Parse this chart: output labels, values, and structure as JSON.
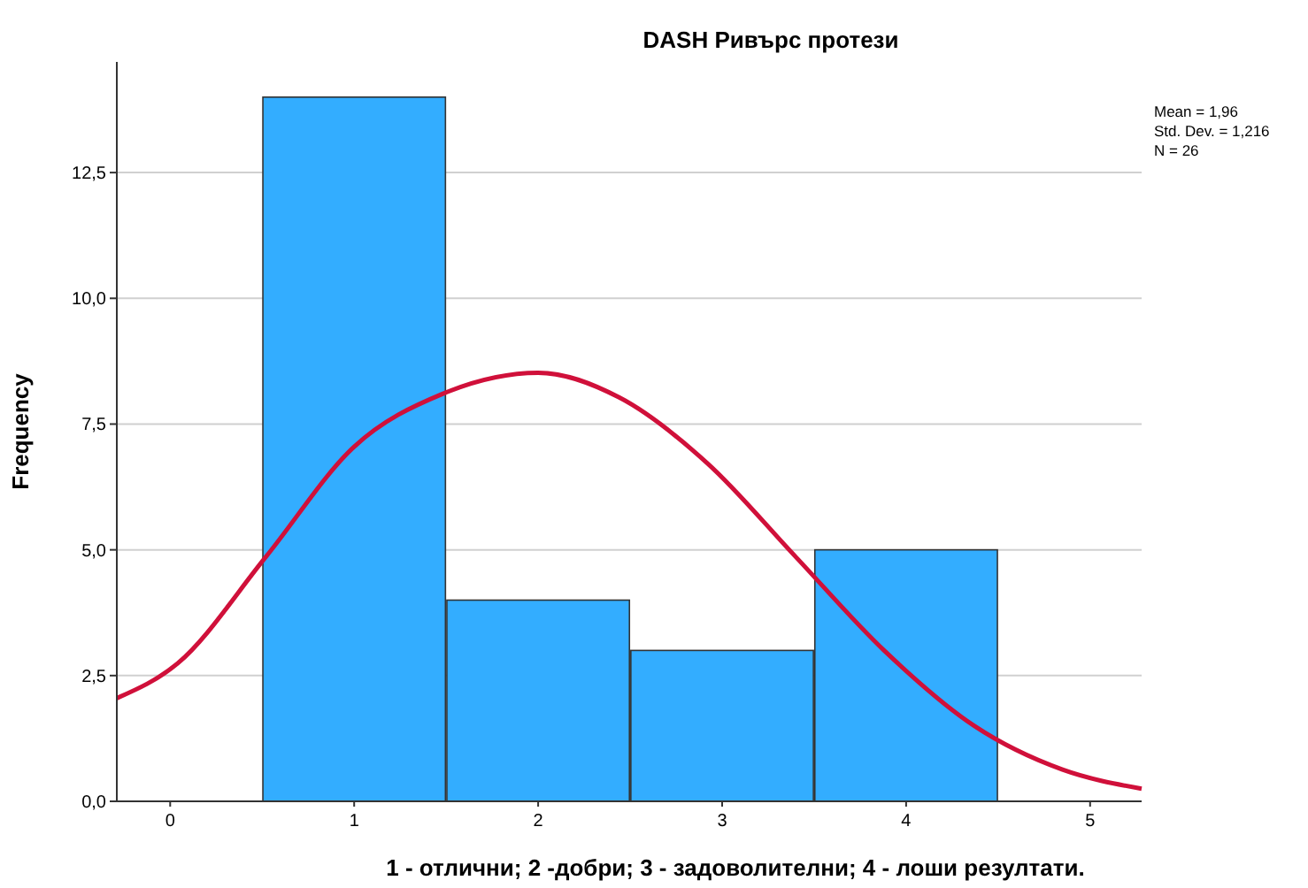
{
  "chart_data": {
    "type": "histogram",
    "title": "DASH  Ривърс протези",
    "xlabel": "1 - отлични; 2 -добри; 3 - задоволителни; 4 - лоши резултати.",
    "ylabel": "Frequency",
    "xlim": [
      -0.29,
      5.28
    ],
    "ylim": [
      0,
      14.7
    ],
    "xticks": [
      0,
      1,
      2,
      3,
      4,
      5
    ],
    "yticks": [
      {
        "value": 0,
        "label": "0,0"
      },
      {
        "value": 2.5,
        "label": "2,5"
      },
      {
        "value": 5,
        "label": "5,0"
      },
      {
        "value": 7.5,
        "label": "7,5"
      },
      {
        "value": 10,
        "label": "10,0"
      },
      {
        "value": 12.5,
        "label": "12,5"
      }
    ],
    "grid": "y",
    "annotations": [
      "Mean = 1,96",
      "Std. Dev. = 1,216",
      "N = 26"
    ],
    "series": [
      {
        "color": "#33adff",
        "bins": [
          0.5,
          1.5,
          2.5,
          3.5,
          4.5
        ],
        "values": [
          14,
          4,
          3,
          5
        ]
      },
      {
        "type": "line",
        "color": "#d0103a",
        "marker": "none",
        "line_style": "solid",
        "x": [
          -0.29,
          0.04,
          0.52,
          1.0,
          1.48,
          2.0,
          2.44,
          2.92,
          3.4,
          3.88,
          4.37,
          4.85,
          5.28
        ],
        "values": [
          2.05,
          2.74,
          4.86,
          7.05,
          8.1,
          8.52,
          8.03,
          6.72,
          4.86,
          3.0,
          1.5,
          0.63,
          0.25
        ]
      }
    ]
  }
}
